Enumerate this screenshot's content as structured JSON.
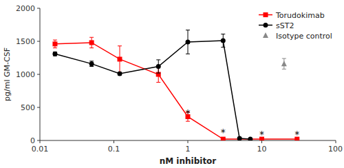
{
  "chart_data": {
    "type": "line",
    "xlabel": "nM inhibitor",
    "ylabel": "pg/ml GM-CSF",
    "log": "x",
    "grid": false,
    "legend": "upper right",
    "xlim": [
      0.01,
      100
    ],
    "xticks": [
      0.01,
      0.1,
      1,
      10,
      100
    ],
    "ylim": [
      0,
      2000
    ],
    "yticks": [
      0,
      500,
      1000,
      1500,
      2000
    ],
    "series": [
      {
        "name": "Torudokimab",
        "color": "#FF0000",
        "marker": "square",
        "line_style": "solid",
        "x": [
          0.016,
          0.05,
          0.12,
          0.4,
          1.0,
          3.0,
          10.0,
          30.0
        ],
        "values": [
          1460,
          1480,
          1230,
          1000,
          360,
          20,
          20,
          20
        ],
        "errors": [
          60,
          80,
          200,
          120,
          70,
          15,
          10,
          10
        ]
      },
      {
        "name": "sST2",
        "color": "#000000",
        "marker": "circle",
        "line_style": "solid",
        "x": [
          0.016,
          0.05,
          0.12,
          0.4,
          1.0,
          3.0,
          5.0,
          7.0
        ],
        "values": [
          1310,
          1160,
          1010,
          1120,
          1490,
          1510,
          30,
          20
        ],
        "errors": [
          30,
          40,
          20,
          100,
          180,
          100,
          15,
          10
        ]
      },
      {
        "name": "Isotype control",
        "color": "#888888",
        "marker": "triangle",
        "line_style": "none",
        "x": [
          20.0
        ],
        "values": [
          1160
        ],
        "errors": [
          80
        ]
      }
    ],
    "annotations": [
      {
        "x": 1.0,
        "y": 450,
        "text": "*"
      },
      {
        "x": 3.0,
        "y": 160,
        "text": "*"
      },
      {
        "x": 10.0,
        "y": 130,
        "text": "*"
      },
      {
        "x": 30.0,
        "y": 130,
        "text": "*"
      }
    ]
  }
}
